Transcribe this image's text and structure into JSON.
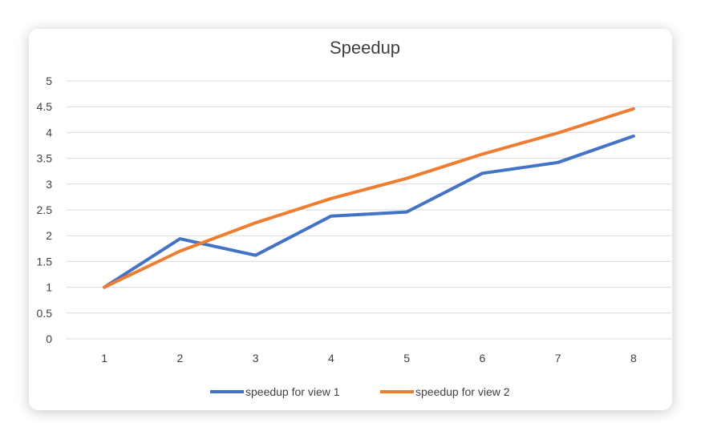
{
  "chart_data": {
    "type": "line",
    "title": "Speedup",
    "xlabel": "",
    "ylabel": "",
    "x": [
      1,
      2,
      3,
      4,
      5,
      6,
      7,
      8
    ],
    "x_tick_labels": [
      "1",
      "2",
      "3",
      "4",
      "5",
      "6",
      "7",
      "8"
    ],
    "ylim": [
      0,
      5
    ],
    "y_tick_labels": [
      "0",
      "0.5",
      "1",
      "1.5",
      "2",
      "2.5",
      "3",
      "3.5",
      "4",
      "4.5",
      "5"
    ],
    "grid": true,
    "legend_position": "bottom",
    "series": [
      {
        "name": "speedup for view 1",
        "color": "#4472C4",
        "values": [
          1.0,
          1.94,
          1.62,
          2.38,
          2.46,
          3.21,
          3.42,
          3.93
        ]
      },
      {
        "name": "speedup for view 2",
        "color": "#ED7D31",
        "values": [
          1.0,
          1.7,
          2.25,
          2.72,
          3.11,
          3.58,
          3.99,
          4.46
        ]
      }
    ]
  }
}
